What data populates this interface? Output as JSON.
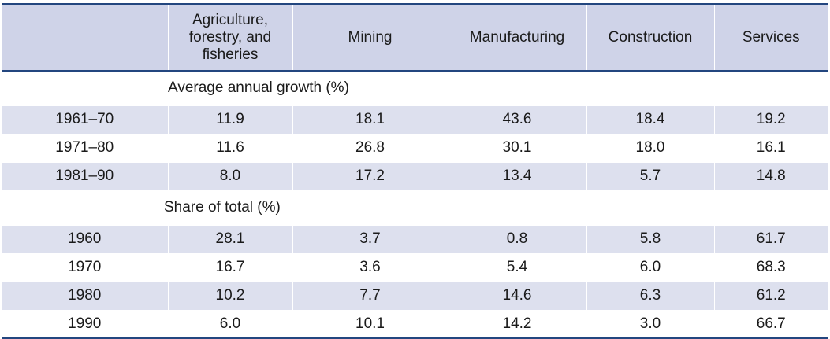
{
  "table": {
    "headers": [
      "",
      "Agriculture, forestry, and fisheries",
      "Mining",
      "Manufacturing",
      "Construction",
      "Services"
    ],
    "sections": [
      {
        "title": "Average annual growth (%)",
        "rows": [
          {
            "label": "1961–70",
            "values": [
              "11.9",
              "18.1",
              "43.6",
              "18.4",
              "19.2"
            ]
          },
          {
            "label": "1971–80",
            "values": [
              "11.6",
              "26.8",
              "30.1",
              "18.0",
              "16.1"
            ]
          },
          {
            "label": "1981–90",
            "values": [
              "8.0",
              "17.2",
              "13.4",
              "5.7",
              "14.8"
            ]
          }
        ]
      },
      {
        "title": "Share of total (%)",
        "rows": [
          {
            "label": "1960",
            "values": [
              "28.1",
              "3.7",
              "0.8",
              "5.8",
              "61.7"
            ]
          },
          {
            "label": "1970",
            "values": [
              "16.7",
              "3.6",
              "5.4",
              "6.0",
              "68.3"
            ]
          },
          {
            "label": "1980",
            "values": [
              "10.2",
              "7.7",
              "14.6",
              "6.3",
              "61.2"
            ]
          },
          {
            "label": "1990",
            "values": [
              "6.0",
              "10.1",
              "14.2",
              "3.0",
              "66.7"
            ]
          }
        ]
      }
    ]
  },
  "colors": {
    "header_bg": "#cfd3e8",
    "row_shade": "#dde0ee",
    "rule": "#23467f"
  }
}
